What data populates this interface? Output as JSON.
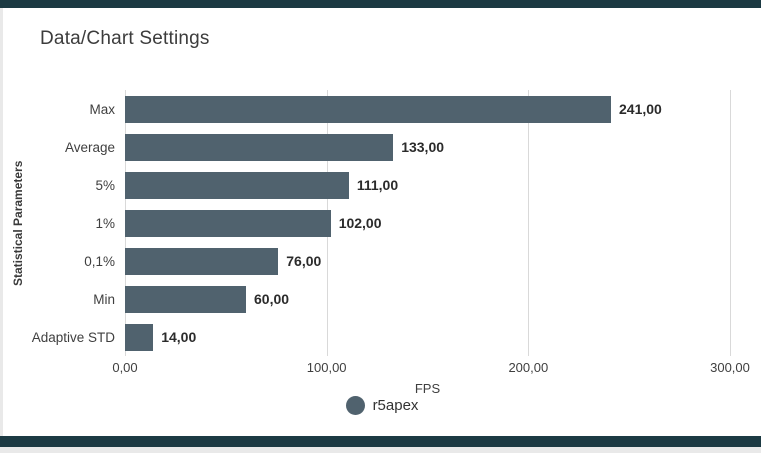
{
  "header": {
    "title": "Data/Chart Settings"
  },
  "theme": {
    "accent": "#1c3a43",
    "bar_color": "#50626e",
    "page_bg": "#e9e9e9",
    "card_bg": "#ffffff",
    "grid_color": "#d9d9d9"
  },
  "chart_data": {
    "type": "bar",
    "orientation": "horizontal",
    "title": "Data/Chart Settings",
    "categories": [
      "Max",
      "Average",
      "5%",
      "1%",
      "0,1%",
      "Min",
      "Adaptive STD"
    ],
    "values": [
      241,
      133,
      111,
      102,
      76,
      60,
      14
    ],
    "value_labels": [
      "241,00",
      "133,00",
      "111,00",
      "102,00",
      "76,00",
      "60,00",
      "14,00"
    ],
    "xlabel": "FPS",
    "ylabel": "Statistical Parameters",
    "xlim": [
      0,
      300
    ],
    "x_ticks": [
      "0,00",
      "100,00",
      "200,00",
      "300,00"
    ],
    "grid": true,
    "legend": {
      "position": "bottom",
      "entries": [
        {
          "label": "r5apex"
        }
      ]
    }
  }
}
